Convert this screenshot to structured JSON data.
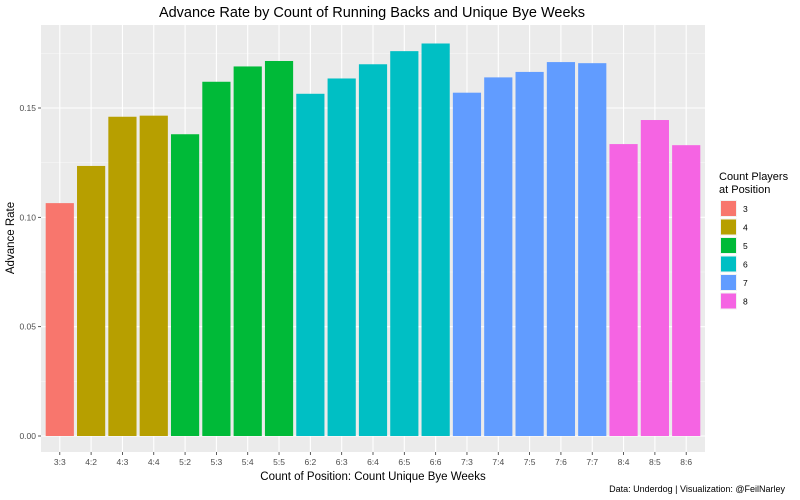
{
  "chart_data": {
    "type": "bar",
    "title": "Advance Rate by Count of Running Backs and Unique Bye Weeks",
    "xlabel": "Count of Position: Count Unique Bye Weeks",
    "ylabel": "Advance Rate",
    "ylim": [
      0,
      0.185
    ],
    "yticks": [
      "0.00",
      "0.05",
      "0.10",
      "0.15"
    ],
    "grid": true,
    "legend_placement": "right",
    "legend_title": [
      "Count Players",
      "at Position"
    ],
    "legend": [
      {
        "label": "3",
        "color": "#F8766D"
      },
      {
        "label": "4",
        "color": "#B79F00"
      },
      {
        "label": "5",
        "color": "#00BA38"
      },
      {
        "label": "6",
        "color": "#00BFC4"
      },
      {
        "label": "7",
        "color": "#619CFF"
      },
      {
        "label": "8",
        "color": "#F564E3"
      }
    ],
    "categories": [
      "3:3",
      "4:2",
      "4:3",
      "4:4",
      "5:2",
      "5:3",
      "5:4",
      "5:5",
      "6:2",
      "6:3",
      "6:4",
      "6:5",
      "6:6",
      "7:3",
      "7:4",
      "7:5",
      "7:6",
      "7:7",
      "8:4",
      "8:5",
      "8:6"
    ],
    "groups": [
      "3",
      "4",
      "4",
      "4",
      "5",
      "5",
      "5",
      "5",
      "6",
      "6",
      "6",
      "6",
      "6",
      "7",
      "7",
      "7",
      "7",
      "7",
      "8",
      "8",
      "8"
    ],
    "values": [
      0.1065,
      0.1235,
      0.146,
      0.1465,
      0.138,
      0.162,
      0.169,
      0.1715,
      0.1565,
      0.1635,
      0.17,
      0.176,
      0.1795,
      0.157,
      0.164,
      0.1665,
      0.171,
      0.1705,
      0.1335,
      0.1445,
      0.133
    ]
  },
  "caption": "Data: Underdog | Visualization: @FeilNarley"
}
